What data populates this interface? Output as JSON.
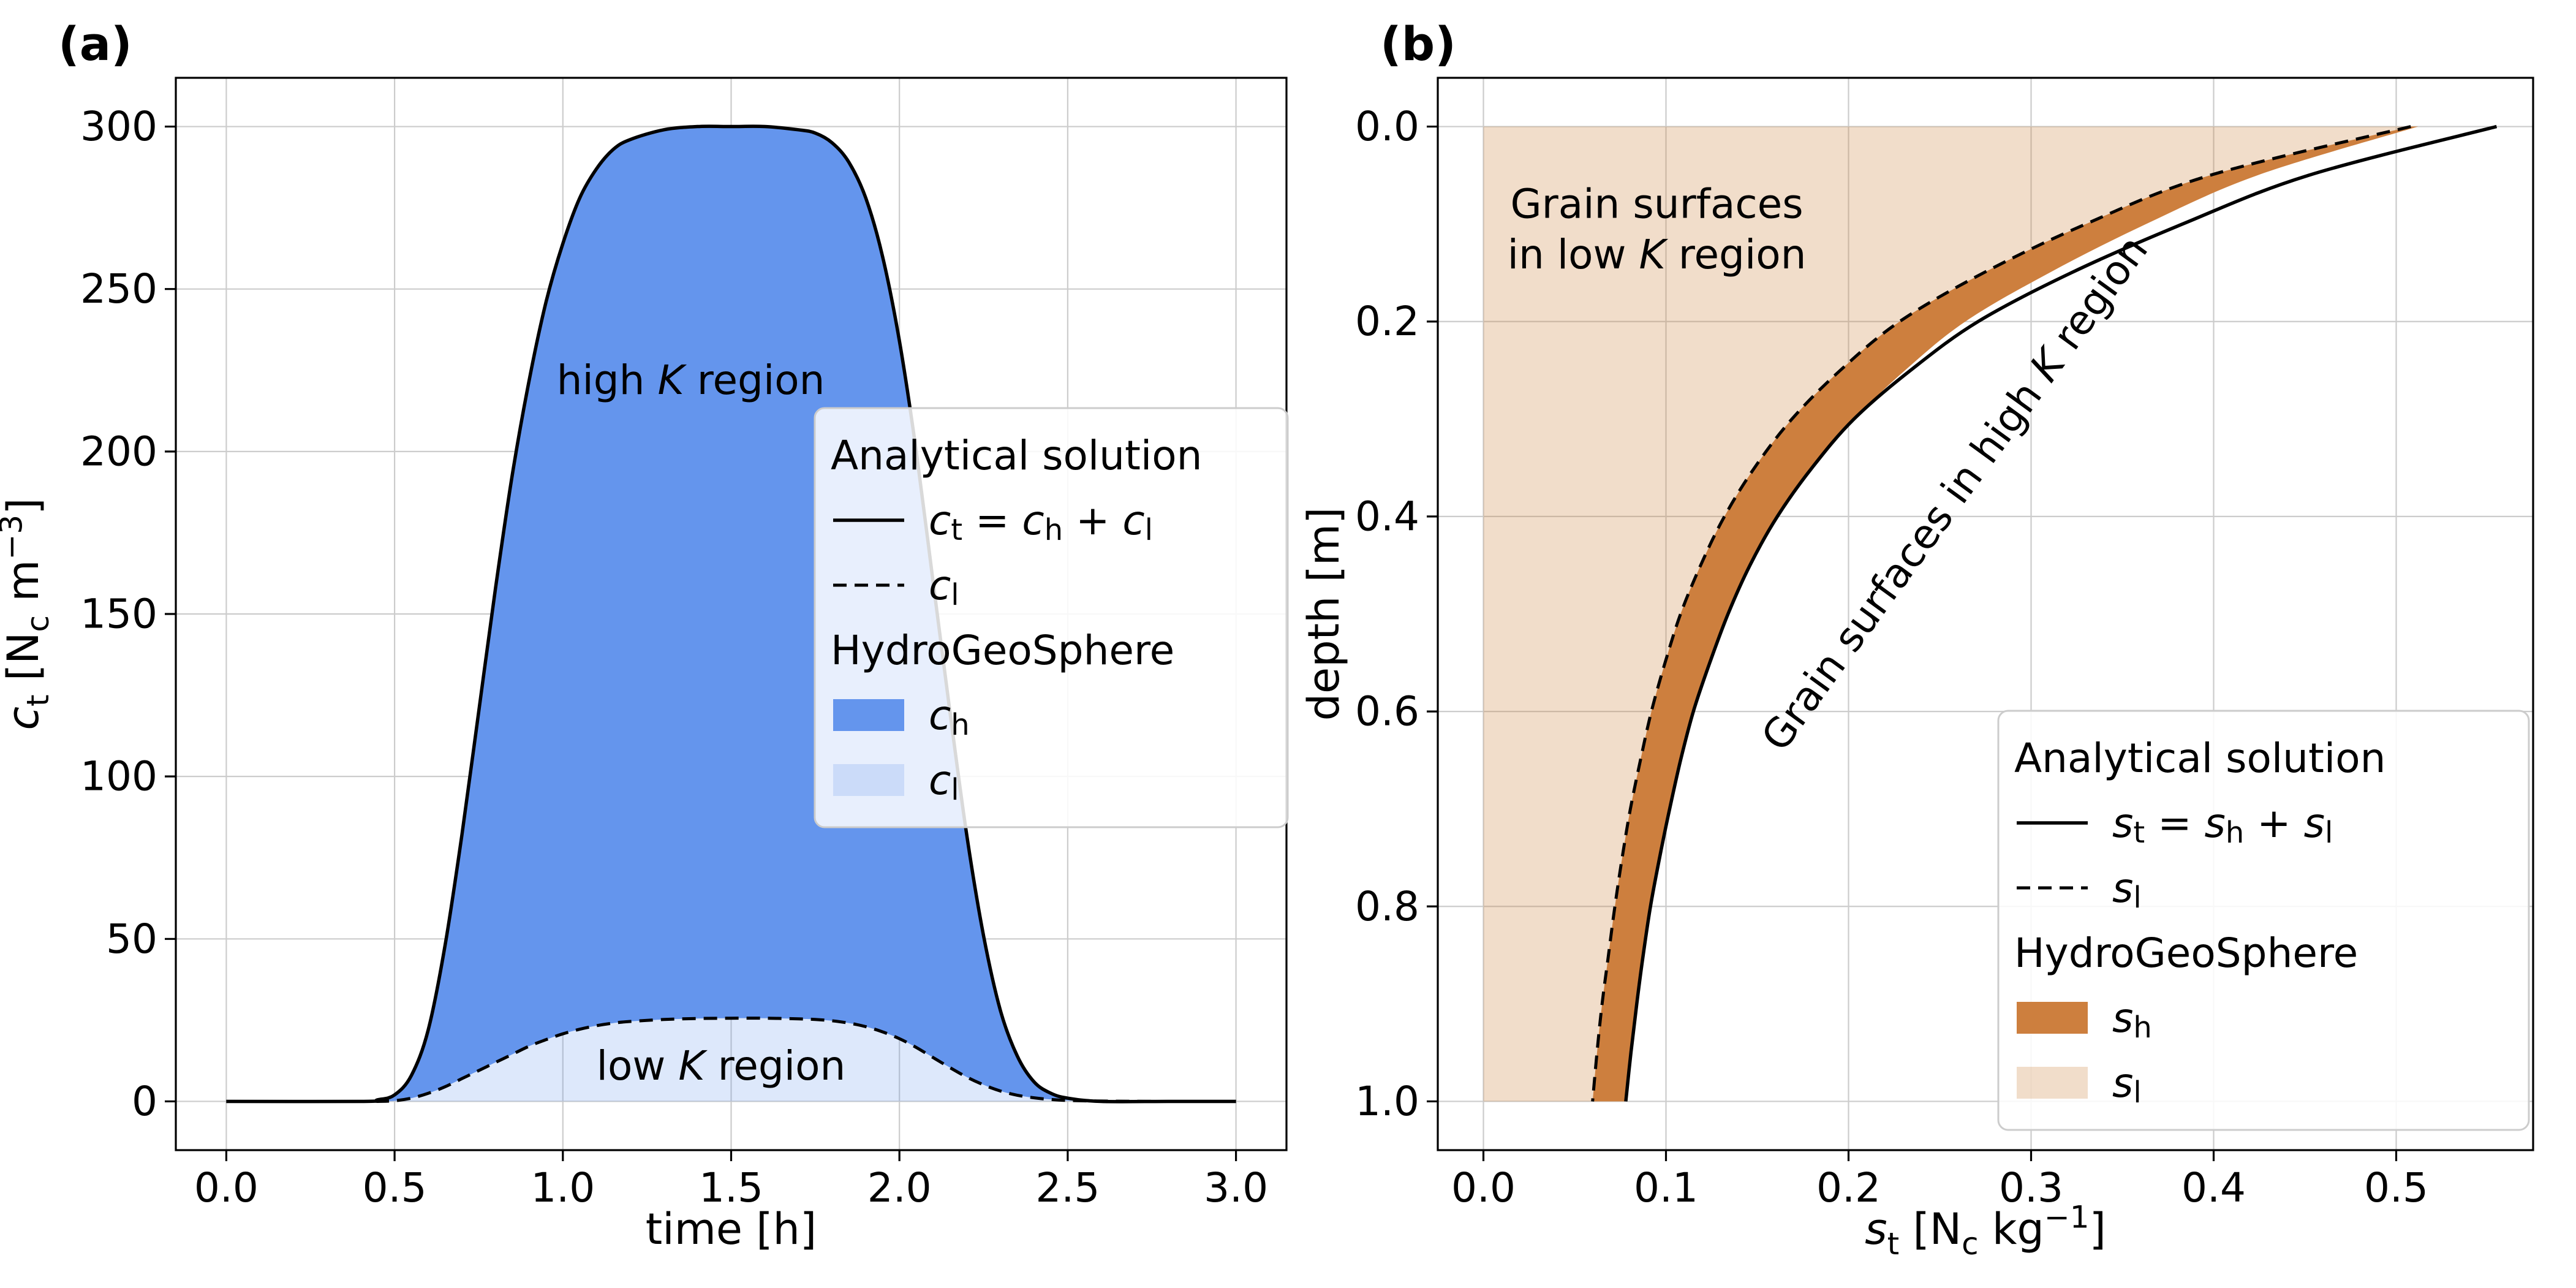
{
  "figure": {
    "background": "#ffffff",
    "panel_labels": [
      "(a)",
      "(b)"
    ]
  },
  "colors": {
    "analytical_line": "#000000",
    "high_k_blue": "#6495ED",
    "low_k_blue": "rgba(100,149,237,0.22)",
    "high_k_orange": "#CD7F3E",
    "low_k_orange": "rgba(205,133,63,0.28)",
    "grid": "#CCCCCC",
    "legend_border": "#CCCCCC"
  },
  "chart_data": [
    {
      "type": "area",
      "panel": "a",
      "panel_label": "(a)",
      "orientation": "x",
      "title": "",
      "xlabel": "time [h]",
      "ylabel": "*c*_{t} [N_{c} m^{−3}]",
      "xlim": [
        -0.15,
        3.15
      ],
      "ylim": [
        315,
        -15
      ],
      "grid": true,
      "legend_position": "center right",
      "x_ticks": {
        "values": [
          0,
          0.5,
          1,
          1.5,
          2,
          2.5,
          3
        ],
        "labels": [
          "0.0",
          "0.5",
          "1.0",
          "1.5",
          "2.0",
          "2.5",
          "3.0"
        ]
      },
      "y_ticks": {
        "values": [
          0,
          50,
          100,
          150,
          200,
          250,
          300
        ],
        "labels": [
          "0",
          "50",
          "100",
          "150",
          "200",
          "250",
          "300"
        ]
      },
      "x": [
        0,
        0.4,
        0.45,
        0.5,
        0.55,
        0.6,
        0.65,
        0.7,
        0.75,
        0.8,
        0.85,
        0.9,
        0.95,
        1.0,
        1.05,
        1.1,
        1.15,
        1.2,
        1.3,
        1.4,
        1.5,
        1.6,
        1.7,
        1.75,
        1.8,
        1.85,
        1.9,
        1.95,
        2.0,
        2.05,
        2.1,
        2.15,
        2.2,
        2.25,
        2.3,
        2.35,
        2.4,
        2.45,
        2.5,
        2.6,
        2.8,
        3.0
      ],
      "series": [
        {
          "id": "c_t",
          "name": "*c*_{t} = *c*_{h} + *c*_{l}",
          "style": "solid",
          "color": "#000000",
          "values": [
            0,
            0,
            0.5,
            2,
            8,
            22,
            48,
            82,
            120,
            158,
            193,
            222,
            246,
            264,
            278,
            287,
            293,
            296,
            299,
            300,
            300,
            300,
            299,
            298,
            295,
            289,
            278,
            260,
            234,
            200,
            160,
            120,
            82,
            51,
            28,
            14,
            6,
            2.5,
            1,
            0,
            0,
            0
          ]
        },
        {
          "id": "c_l",
          "name": "*c*_{l}",
          "style": "dashed",
          "color": "#000000",
          "values": [
            0,
            0,
            0,
            0.2,
            1,
            2.5,
            4.5,
            7,
            9.5,
            12,
            14.5,
            17,
            19,
            20.8,
            22.2,
            23.3,
            24.1,
            24.6,
            25.2,
            25.5,
            25.6,
            25.6,
            25.4,
            25.2,
            24.8,
            24.1,
            23.0,
            21.4,
            19.3,
            16.6,
            13.5,
            10.4,
            7.5,
            5.1,
            3.2,
            1.9,
            1.1,
            0.6,
            0.3,
            0.1,
            0,
            0
          ]
        }
      ],
      "fills": [
        {
          "id": "c-l-fill-area",
          "label": "*c*_{l}",
          "color": "rgba(100,149,237,0.22)",
          "between": [
            "zero",
            "c_l"
          ]
        },
        {
          "id": "c-h-fill-area",
          "label": "*c*_{h}",
          "color": "#6495ED",
          "between": [
            "c_l",
            "c_t"
          ]
        }
      ],
      "annotations": [
        {
          "text": "high *K* region",
          "x": 1.38,
          "y": 222,
          "rotation": 0
        },
        {
          "text": "low *K* region",
          "x": 1.47,
          "y": 11,
          "rotation": 0
        }
      ],
      "legend": {
        "sections": [
          {
            "title": "Analytical solution",
            "entries": [
              {
                "swatch": "line-solid",
                "label": "*c*_{t} = *c*_{h} + *c*_{l}"
              },
              {
                "swatch": "line-dashed",
                "label": "*c*_{l}"
              }
            ]
          },
          {
            "title": "HydroGeoSphere",
            "entries": [
              {
                "swatch": "patch",
                "color": "#6495ED",
                "label": "*c*_{h}"
              },
              {
                "swatch": "patch",
                "color": "rgba(100,149,237,0.22)",
                "label": "*c*_{l}"
              }
            ]
          }
        ]
      }
    },
    {
      "type": "area",
      "panel": "b",
      "panel_label": "(b)",
      "orientation": "y",
      "title": "",
      "xlabel": "*s*_{t} [N_{c} kg^{−1}]",
      "ylabel": "depth [m]",
      "xlim": [
        -0.025,
        0.575
      ],
      "ylim": [
        -0.05,
        1.05
      ],
      "grid": true,
      "legend_position": "lower right",
      "x_ticks": {
        "values": [
          0,
          0.1,
          0.2,
          0.3,
          0.4,
          0.5
        ],
        "labels": [
          "0.0",
          "0.1",
          "0.2",
          "0.3",
          "0.4",
          "0.5"
        ]
      },
      "y_ticks": {
        "values": [
          0,
          0.2,
          0.4,
          0.6,
          0.8,
          1
        ],
        "labels": [
          "0.0",
          "0.2",
          "0.4",
          "0.6",
          "0.8",
          "1.0"
        ]
      },
      "y": [
        0,
        0.05,
        0.1,
        0.15,
        0.2,
        0.25,
        0.3,
        0.35,
        0.4,
        0.45,
        0.5,
        0.55,
        0.6,
        0.65,
        0.7,
        0.75,
        0.8,
        0.85,
        0.9,
        0.95,
        1.0
      ],
      "series": [
        {
          "id": "s_t",
          "name": "*s*_{t} = *s*_{h} + *s*_{l}",
          "style": "solid",
          "color": "#000000",
          "values": [
            0.555,
            0.452,
            0.383,
            0.322,
            0.271,
            0.234,
            0.203,
            0.18,
            0.161,
            0.146,
            0.134,
            0.124,
            0.115,
            0.108,
            0.102,
            0.0965,
            0.0915,
            0.0875,
            0.084,
            0.0808,
            0.078
          ]
        },
        {
          "id": "s_l",
          "name": "*s*_{l}",
          "style": "dashed",
          "color": "#000000",
          "values": [
            0.508,
            0.398,
            0.33,
            0.274,
            0.228,
            0.1955,
            0.169,
            0.1485,
            0.132,
            0.119,
            0.108,
            0.0995,
            0.092,
            0.086,
            0.0805,
            0.076,
            0.072,
            0.0685,
            0.065,
            0.0622,
            0.0598
          ]
        },
        {
          "id": "s_hgs_t",
          "name": "HydroGeoSphere *s*_{h} band outer edge",
          "style": "none",
          "color": "#CD7F3E",
          "values": [
            0.512,
            0.424,
            0.363,
            0.31,
            0.264,
            0.231,
            0.203,
            0.18,
            0.161,
            0.146,
            0.134,
            0.124,
            0.115,
            0.108,
            0.102,
            0.0965,
            0.0915,
            0.0875,
            0.084,
            0.0808,
            0.078
          ]
        }
      ],
      "fills": [
        {
          "id": "s-l-fill-area",
          "label": "*s*_{l}",
          "color": "rgba(205,133,63,0.28)",
          "between": [
            "zero",
            "s_l"
          ]
        },
        {
          "id": "s-h-fill-area",
          "label": "*s*_{h}",
          "color": "#CD7F3E",
          "between": [
            "s_l",
            "s_hgs_t"
          ]
        }
      ],
      "annotations": [
        {
          "lines": [
            "Grain surfaces",
            "in low *K* region"
          ],
          "x": 0.095,
          "y": 0.105,
          "rotation": 0
        },
        {
          "text": "Grain surfaces in high *K* region",
          "x": 0.258,
          "y": 0.376,
          "rotation": -54
        }
      ],
      "legend": {
        "sections": [
          {
            "title": "Analytical solution",
            "entries": [
              {
                "swatch": "line-solid",
                "label": "*s*_{t} = *s*_{h} + *s*_{l}"
              },
              {
                "swatch": "line-dashed",
                "label": "*s*_{l}"
              }
            ]
          },
          {
            "title": "HydroGeoSphere",
            "entries": [
              {
                "swatch": "patch",
                "color": "#CD7F3E",
                "label": "*s*_{h}"
              },
              {
                "swatch": "patch",
                "color": "rgba(205,133,63,0.28)",
                "label": "*s*_{l}"
              }
            ]
          }
        ]
      }
    }
  ]
}
